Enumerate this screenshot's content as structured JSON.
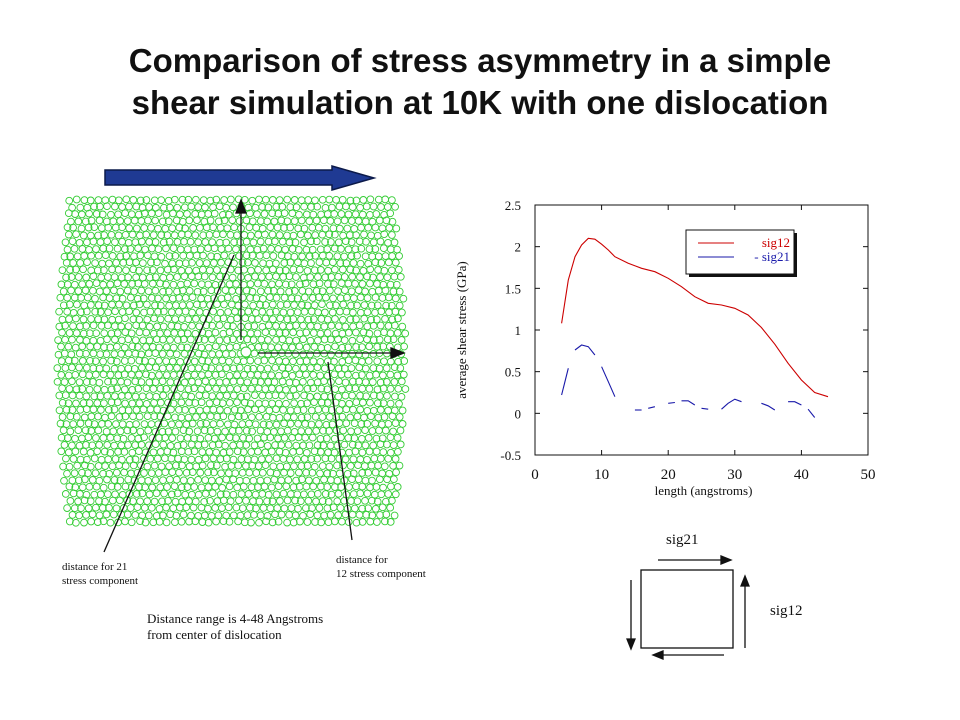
{
  "title": {
    "line1": "Comparison of stress asymmetry in a simple",
    "line2": "shear simulation at 10K with one dislocation"
  },
  "simulation": {
    "label_21_line1": "distance for 21",
    "label_21_line2": "stress component",
    "label_12_line1": "distance for",
    "label_12_line2": "12 stress component",
    "range_line1": "Distance range is 4-48 Angstroms",
    "range_line2": "from center of dislocation",
    "colors": {
      "atom": "#33cc33",
      "shear_arrow": "#1f3a93"
    }
  },
  "chart_data": {
    "type": "line",
    "xlabel": "length (angstroms)",
    "ylabel": "average shear stress (GPa)",
    "xlim": [
      0,
      50
    ],
    "ylim": [
      -0.5,
      2.5
    ],
    "xticks": [
      "0",
      "10",
      "20",
      "30",
      "40",
      "50"
    ],
    "yticks": [
      "2.5",
      "2",
      "1.5",
      "1",
      "0.5",
      "0",
      "-0.5"
    ],
    "legend_position": "top-right",
    "series": [
      {
        "name": "sig12",
        "color": "#cc0000",
        "segments": [
          [
            [
              4,
              1.08
            ],
            [
              5,
              1.6
            ],
            [
              6,
              1.88
            ],
            [
              7,
              2.02
            ],
            [
              8,
              2.1
            ],
            [
              9,
              2.09
            ],
            [
              10,
              2.03
            ],
            [
              11,
              1.96
            ],
            [
              12,
              1.88
            ],
            [
              14,
              1.8
            ],
            [
              16,
              1.74
            ],
            [
              18,
              1.7
            ],
            [
              20,
              1.62
            ],
            [
              22,
              1.52
            ],
            [
              24,
              1.4
            ],
            [
              26,
              1.32
            ],
            [
              28,
              1.3
            ],
            [
              30,
              1.26
            ],
            [
              32,
              1.18
            ],
            [
              34,
              1.03
            ],
            [
              36,
              0.83
            ],
            [
              38,
              0.6
            ],
            [
              40,
              0.4
            ],
            [
              42,
              0.25
            ],
            [
              44,
              0.2
            ]
          ]
        ]
      },
      {
        "name": "- sig21",
        "color": "#1a1aaa",
        "segments": [
          [
            [
              4,
              0.22
            ],
            [
              5,
              0.54
            ]
          ],
          [
            [
              6,
              0.76
            ],
            [
              7,
              0.82
            ],
            [
              8,
              0.8
            ],
            [
              9,
              0.7
            ]
          ],
          [
            [
              10,
              0.56
            ],
            [
              11,
              0.38
            ],
            [
              12,
              0.2
            ]
          ],
          [
            [
              15,
              0.04
            ],
            [
              16,
              0.04
            ]
          ],
          [
            [
              17,
              0.06
            ],
            [
              18,
              0.08
            ]
          ],
          [
            [
              20,
              0.12
            ],
            [
              21,
              0.13
            ]
          ],
          [
            [
              22,
              0.15
            ],
            [
              23,
              0.15
            ],
            [
              24,
              0.1
            ]
          ],
          [
            [
              25,
              0.06
            ],
            [
              26,
              0.05
            ]
          ],
          [
            [
              28,
              0.05
            ],
            [
              29,
              0.12
            ],
            [
              30,
              0.17
            ],
            [
              31,
              0.14
            ]
          ],
          [
            [
              34,
              0.12
            ],
            [
              35,
              0.09
            ],
            [
              36,
              0.04
            ]
          ],
          [
            [
              38,
              0.14
            ],
            [
              39,
              0.14
            ],
            [
              40,
              0.1
            ]
          ],
          [
            [
              41,
              0.05
            ],
            [
              42,
              -0.05
            ]
          ]
        ]
      }
    ]
  },
  "diagram": {
    "sig21_label": "sig21",
    "sig12_label": "sig12"
  }
}
